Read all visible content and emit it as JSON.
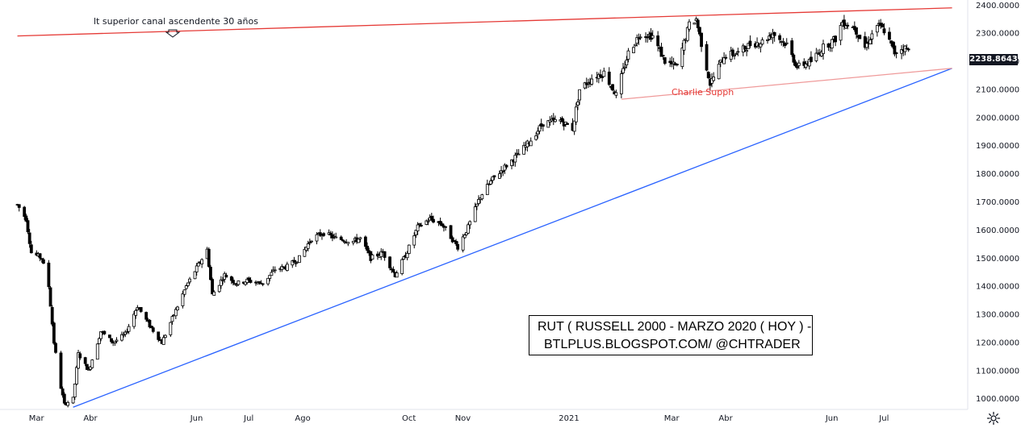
{
  "chart_data": {
    "type": "candlestick",
    "instrument": "RUT",
    "y_ticks": [
      1000,
      1100,
      1200,
      1300,
      1400,
      1500,
      1600,
      1700,
      1800,
      1900,
      2000,
      2100,
      2200,
      2300,
      2400
    ],
    "y_tick_labels": [
      "1000.0000",
      "1100.0000",
      "1200.0000",
      "1300.0000",
      "1400.0000",
      "1500.0000",
      "1600.0000",
      "1700.0000",
      "1800.0000",
      "1900.0000",
      "2000.0000",
      "2100.0000",
      "2200.0000",
      "2300.0000",
      "2400.0000"
    ],
    "ylim": [
      962,
      2418
    ],
    "x_labels": [
      "Mar",
      "Abr",
      "Jun",
      "Jul",
      "Ago",
      "Oct",
      "Nov",
      "2021",
      "Mar",
      "Abr",
      "Jun",
      "Jul"
    ],
    "x_label_dates": [
      "2020-03-01",
      "2020-04-01",
      "2020-06-01",
      "2020-07-01",
      "2020-08-01",
      "2020-10-01",
      "2020-11-01",
      "2021-01-01",
      "2021-03-01",
      "2021-04-01",
      "2021-06-01",
      "2021-07-01"
    ],
    "last_price": 2238.8643,
    "last_price_label": "2238.8643",
    "price_path": [
      [
        "2020-02-20",
        1690
      ],
      [
        "2020-02-25",
        1640
      ],
      [
        "2020-02-28",
        1520
      ],
      [
        "2020-03-05",
        1500
      ],
      [
        "2020-03-09",
        1400
      ],
      [
        "2020-03-12",
        1200
      ],
      [
        "2020-03-16",
        1040
      ],
      [
        "2020-03-18",
        980
      ],
      [
        "2020-03-23",
        1000
      ],
      [
        "2020-03-26",
        1160
      ],
      [
        "2020-04-01",
        1100
      ],
      [
        "2020-04-08",
        1240
      ],
      [
        "2020-04-15",
        1200
      ],
      [
        "2020-04-22",
        1230
      ],
      [
        "2020-04-29",
        1330
      ],
      [
        "2020-05-06",
        1260
      ],
      [
        "2020-05-13",
        1200
      ],
      [
        "2020-05-20",
        1300
      ],
      [
        "2020-05-27",
        1400
      ],
      [
        "2020-06-08",
        1530
      ],
      [
        "2020-06-11",
        1370
      ],
      [
        "2020-06-18",
        1440
      ],
      [
        "2020-06-25",
        1410
      ],
      [
        "2020-07-01",
        1420
      ],
      [
        "2020-07-10",
        1410
      ],
      [
        "2020-07-17",
        1460
      ],
      [
        "2020-07-24",
        1470
      ],
      [
        "2020-07-31",
        1500
      ],
      [
        "2020-08-07",
        1570
      ],
      [
        "2020-08-14",
        1590
      ],
      [
        "2020-08-21",
        1570
      ],
      [
        "2020-08-31",
        1560
      ],
      [
        "2020-09-04",
        1570
      ],
      [
        "2020-09-10",
        1500
      ],
      [
        "2020-09-17",
        1520
      ],
      [
        "2020-09-24",
        1440
      ],
      [
        "2020-09-30",
        1510
      ],
      [
        "2020-10-07",
        1610
      ],
      [
        "2020-10-14",
        1640
      ],
      [
        "2020-10-21",
        1620
      ],
      [
        "2020-10-30",
        1540
      ],
      [
        "2020-11-05",
        1610
      ],
      [
        "2020-11-12",
        1720
      ],
      [
        "2020-11-19",
        1780
      ],
      [
        "2020-11-27",
        1830
      ],
      [
        "2020-12-04",
        1870
      ],
      [
        "2020-12-11",
        1920
      ],
      [
        "2020-12-18",
        1980
      ],
      [
        "2020-12-28",
        1990
      ],
      [
        "2021-01-04",
        1960
      ],
      [
        "2021-01-08",
        2100
      ],
      [
        "2021-01-15",
        2140
      ],
      [
        "2021-01-22",
        2160
      ],
      [
        "2021-01-29",
        2080
      ],
      [
        "2021-02-05",
        2230
      ],
      [
        "2021-02-12",
        2300
      ],
      [
        "2021-02-19",
        2290
      ],
      [
        "2021-02-26",
        2200
      ],
      [
        "2021-03-05",
        2180
      ],
      [
        "2021-03-12",
        2330
      ],
      [
        "2021-03-16",
        2350
      ],
      [
        "2021-03-24",
        2120
      ],
      [
        "2021-04-01",
        2220
      ],
      [
        "2021-04-09",
        2230
      ],
      [
        "2021-04-16",
        2260
      ],
      [
        "2021-04-23",
        2270
      ],
      [
        "2021-04-29",
        2300
      ],
      [
        "2021-05-07",
        2260
      ],
      [
        "2021-05-13",
        2180
      ],
      [
        "2021-05-21",
        2200
      ],
      [
        "2021-05-28",
        2250
      ],
      [
        "2021-06-04",
        2280
      ],
      [
        "2021-06-08",
        2340
      ],
      [
        "2021-06-15",
        2320
      ],
      [
        "2021-06-21",
        2250
      ],
      [
        "2021-06-28",
        2330
      ],
      [
        "2021-07-02",
        2310
      ],
      [
        "2021-07-08",
        2230
      ],
      [
        "2021-07-13",
        2250
      ],
      [
        "2021-07-16",
        2238.86
      ]
    ],
    "trendlines": [
      {
        "name": "canal-superior",
        "color": "#e53935",
        "from": [
          "2020-02-20",
          2290
        ],
        "to": [
          "2021-08-10",
          2390
        ]
      },
      {
        "name": "soporte-ascendente",
        "color": "#2962ff",
        "from": [
          "2020-03-23",
          970
        ],
        "to": [
          "2021-08-10",
          2175
        ]
      },
      {
        "name": "soporte-lateral",
        "color": "#ef9a9a",
        "from": [
          "2021-02-01",
          2065
        ],
        "to": [
          "2021-08-10",
          2175
        ]
      }
    ],
    "annotations": [
      {
        "text": "lt superior canal ascendente 30 años",
        "color": "#131722"
      },
      {
        "text": "Charlie Supph",
        "color": "#e53935"
      }
    ],
    "info_box": {
      "line1": "RUT ( RUSSELL 2000 - MARZO 2020 ( HOY ) -",
      "line2": "BTLPLUS.BLOGSPOT.COM/ @CHTRADER"
    },
    "grid": false
  }
}
